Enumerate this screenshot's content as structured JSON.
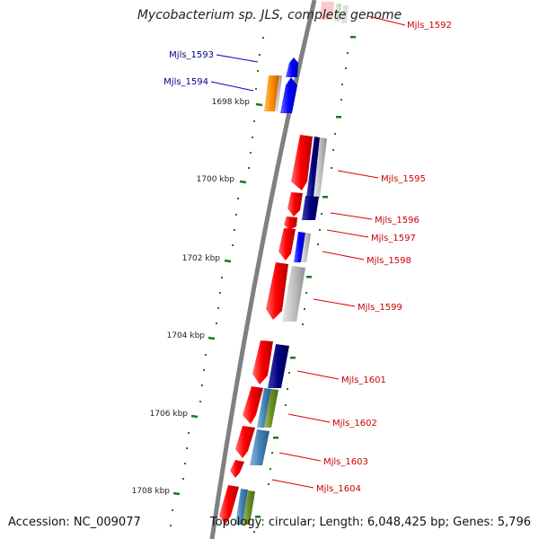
{
  "title": "Mycobacterium sp. JLS, complete genome",
  "footer": {
    "accession": "Accession: NC_009077",
    "summary": "Topology: circular; Length: 6,048,425 bp; Genes: 5,796"
  },
  "ruler": {
    "tick_labels": [
      "1698 kbp",
      "1700 kbp",
      "1702 kbp",
      "1704 kbp",
      "1706 kbp",
      "1708 kbp"
    ]
  },
  "gene_labels": {
    "forward": [
      "Mjls_1593",
      "Mjls_1594"
    ],
    "reverse": [
      "Mjls_1592",
      "Mjls_1595",
      "Mjls_1596",
      "Mjls_1597",
      "Mjls_1598",
      "Mjls_1599",
      "Mjls_1601",
      "Mjls_1602",
      "Mjls_1603",
      "Mjls_1604"
    ]
  },
  "colors": {
    "backbone": "#808080",
    "tick": "#1a7a1a",
    "forward_label": "#00008b",
    "reverse_label": "#cc0000",
    "gene_red": "#ff0000",
    "gene_blue": "#0000ff",
    "gene_orange": "#ff8c00",
    "gene_navy": "#000080",
    "gene_grey": "#c0c0c0",
    "gene_steel": "#4682b4",
    "gene_olive": "#6b8e23"
  }
}
